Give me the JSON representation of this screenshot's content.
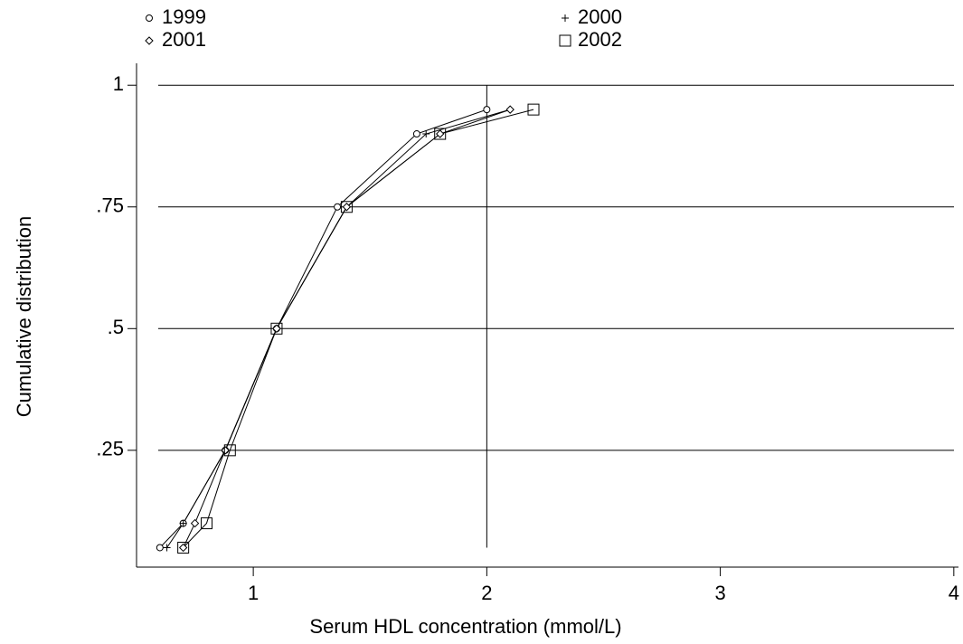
{
  "chart_data": {
    "type": "line",
    "x_label": "Serum HDL concentration (mmol/L)",
    "y_label": "Cumulative distribution",
    "xlim": [
      0.5,
      4.02
    ],
    "ylim": [
      0.01,
      1.045
    ],
    "xticks": [
      1,
      2,
      3,
      4
    ],
    "yticks": [
      {
        "value": 0.25,
        "label": ".25"
      },
      {
        "value": 0.5,
        "label": ".5"
      },
      {
        "value": 0.75,
        "label": ".75"
      },
      1
    ],
    "grid": true,
    "color": "#000000",
    "reference_line": {
      "x": 2,
      "y": [
        0.05,
        1
      ]
    },
    "series": [
      {
        "name": "1999",
        "marker": "circle",
        "x": [
          0.6,
          0.7,
          0.88,
          1.1,
          1.36,
          1.7,
          2.0
        ],
        "values": [
          0.05,
          0.1,
          0.25,
          0.5,
          0.75,
          0.9,
          0.95
        ]
      },
      {
        "name": "2000",
        "marker": "plus",
        "x": [
          0.63,
          0.7,
          0.88,
          1.1,
          1.4,
          1.74,
          2.1
        ],
        "values": [
          0.05,
          0.1,
          0.25,
          0.5,
          0.75,
          0.9,
          0.95
        ]
      },
      {
        "name": "2001",
        "marker": "diamond",
        "x": [
          0.7,
          0.75,
          0.88,
          1.1,
          1.4,
          1.8,
          2.1
        ],
        "values": [
          0.05,
          0.1,
          0.25,
          0.5,
          0.75,
          0.9,
          0.95
        ]
      },
      {
        "name": "2002",
        "marker": "square",
        "x": [
          0.7,
          0.8,
          0.9,
          1.1,
          1.4,
          1.8,
          2.2
        ],
        "values": [
          0.05,
          0.1,
          0.25,
          0.5,
          0.75,
          0.9,
          0.95
        ]
      }
    ]
  }
}
